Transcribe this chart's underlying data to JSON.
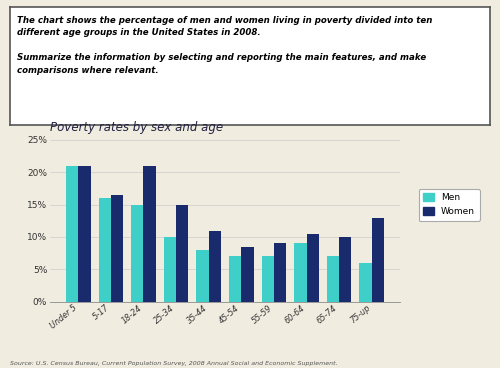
{
  "title": "Poverty rates by sex and age",
  "categories": [
    "Under 5",
    "5-17",
    "18-24",
    "25-34",
    "35-44",
    "45-54",
    "55-59",
    "60-64",
    "65-74",
    "75-up"
  ],
  "men_values": [
    21,
    16,
    15,
    10,
    8,
    7,
    7,
    9,
    7,
    6
  ],
  "women_values": [
    21,
    16.5,
    21,
    15,
    11,
    8.5,
    9,
    10.5,
    10,
    13
  ],
  "men_color": "#3ECFC8",
  "women_color": "#1A2B6D",
  "ylim": [
    0,
    25
  ],
  "yticks": [
    0,
    5,
    10,
    15,
    20,
    25
  ],
  "source": "Source: U.S. Census Bureau, Current Population Survey, 2008 Annual Social and Economic Supplement.",
  "text_line1": "The chart shows the percentage of men and women living in poverty divided into ten",
  "text_line2": "different age groups in the United States in 2008.",
  "text_line3": "",
  "text_line4": "Summarize the information by selecting and reporting the main features, and make",
  "text_line5": "comparisons where relevant.",
  "bg_color": "#f0ece0",
  "legend_men": "Men",
  "legend_women": "Women"
}
